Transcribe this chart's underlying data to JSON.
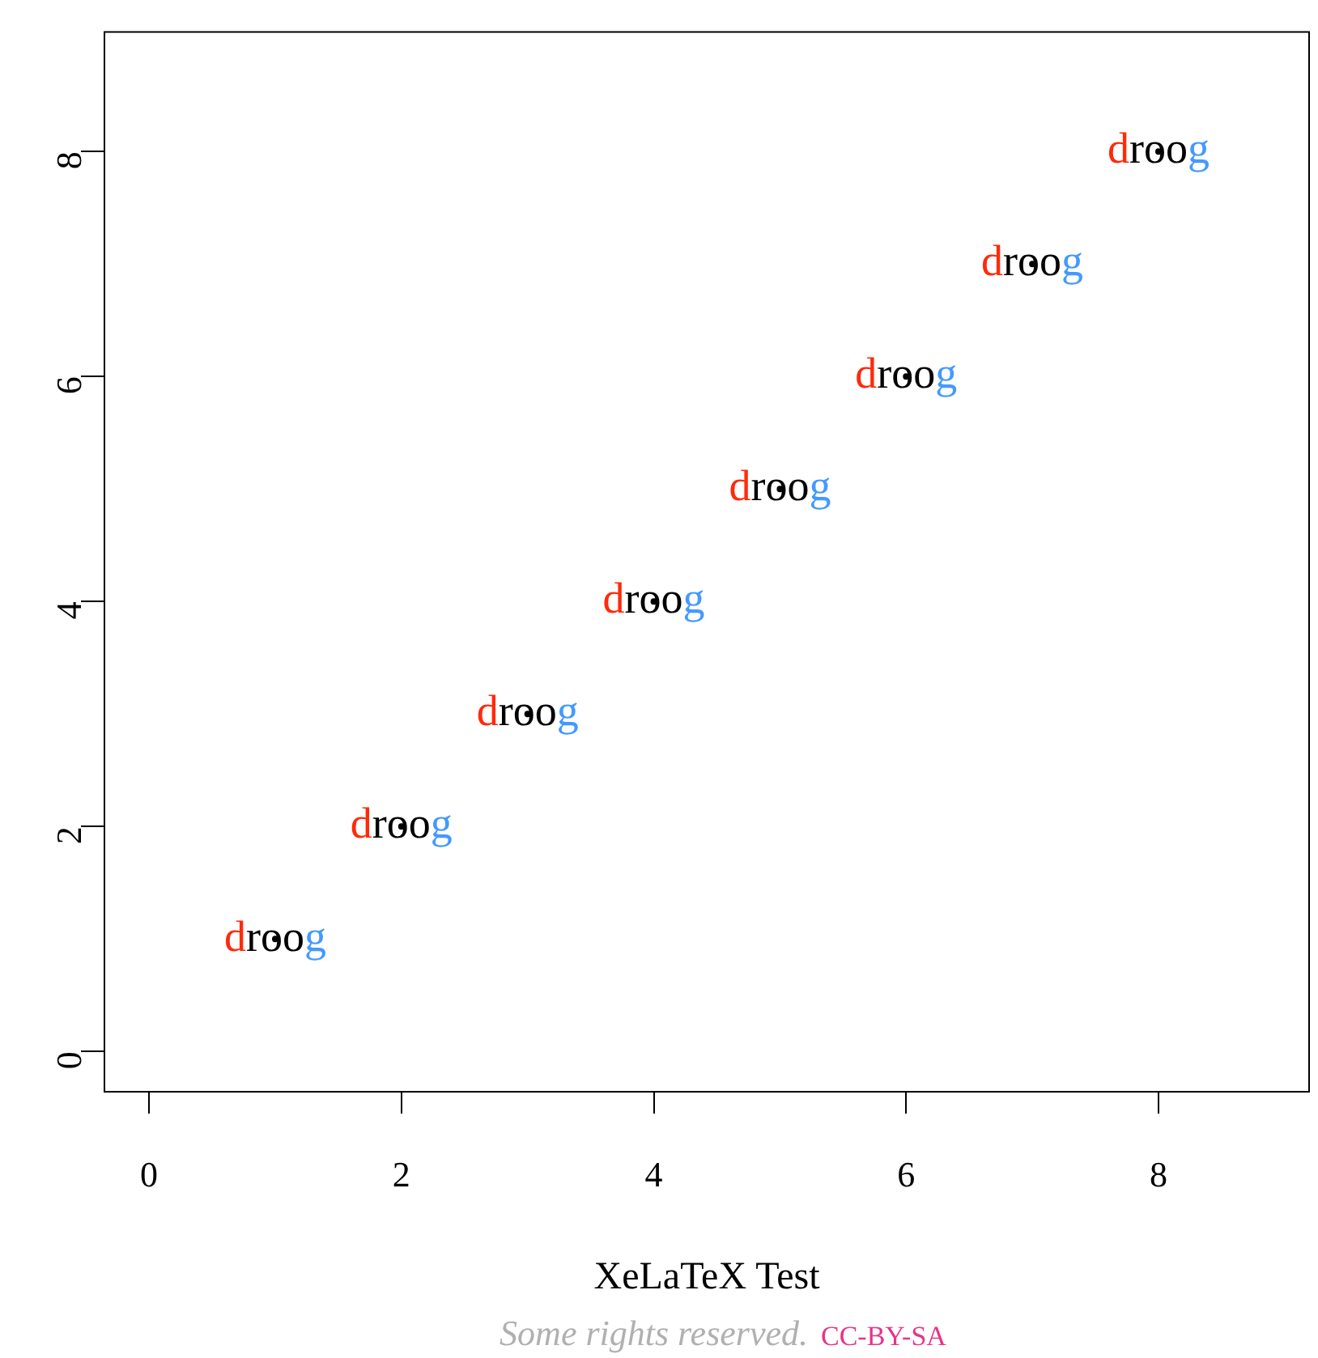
{
  "chart_data": {
    "type": "scatter",
    "xlabel": "XeLaTeX Test",
    "x": [
      1,
      2,
      3,
      4,
      5,
      6,
      7,
      8
    ],
    "series": [
      {
        "color": "#000000",
        "values": [
          1,
          2,
          3,
          4,
          5,
          6,
          7,
          8
        ],
        "value_labels": [
          "droog",
          "droog",
          "droog",
          "droog",
          "droog",
          "droog",
          "droog",
          "droog"
        ]
      }
    ],
    "xlim": [
      -0.36,
      9.2
    ],
    "ylim": [
      -0.35,
      9.07
    ],
    "xticks": [
      0,
      2,
      4,
      6,
      8
    ],
    "yticks": [
      0,
      2,
      4,
      6,
      8
    ],
    "grid": false,
    "legend": false,
    "annotations": [
      "Some rights reserved.",
      "CC-BY-SA"
    ]
  }
}
